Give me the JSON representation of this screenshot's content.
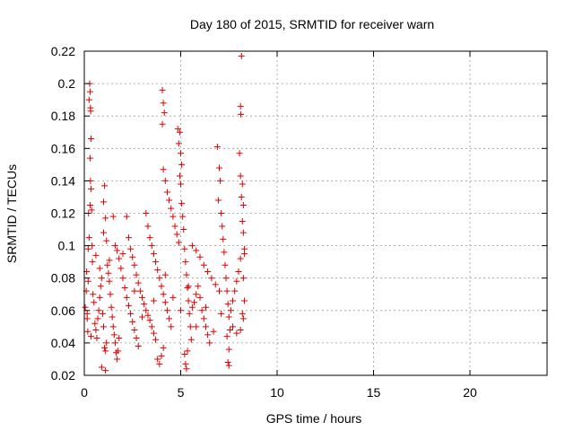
{
  "chart_data": {
    "type": "scatter",
    "title": "Day 180 of 2015, SRMTID for receiver warn",
    "xlabel": "GPS time / hours",
    "ylabel": "SRMTID / TECUs",
    "xlim": [
      0,
      24
    ],
    "ylim": [
      0.02,
      0.22
    ],
    "xticks": [
      0,
      5,
      10,
      15,
      20
    ],
    "xtick_labels": [
      "0",
      "5",
      "10",
      "15",
      "20"
    ],
    "yticks": [
      0.02,
      0.04,
      0.06,
      0.08,
      0.1,
      0.12,
      0.14,
      0.16,
      0.18,
      0.2,
      0.22
    ],
    "ytick_labels": [
      "0.02",
      "0.04",
      "0.06",
      "0.08",
      "0.1",
      "0.12",
      "0.14",
      "0.16",
      "0.18",
      "0.2",
      "0.22"
    ],
    "grid": true,
    "marker": "plus",
    "color": "#e00000",
    "series": [
      {
        "name": "SRMTID",
        "points": [
          [
            0.05,
            0.062
          ],
          [
            0.1,
            0.072
          ],
          [
            0.12,
            0.084
          ],
          [
            0.15,
            0.055
          ],
          [
            0.18,
            0.047
          ],
          [
            0.2,
            0.098
          ],
          [
            0.22,
            0.12
          ],
          [
            0.25,
            0.19
          ],
          [
            0.28,
            0.2
          ],
          [
            0.3,
            0.195
          ],
          [
            0.32,
            0.185
          ],
          [
            0.33,
            0.183
          ],
          [
            0.35,
            0.166
          ],
          [
            0.3,
            0.154
          ],
          [
            0.32,
            0.14
          ],
          [
            0.35,
            0.135
          ],
          [
            0.3,
            0.125
          ],
          [
            0.38,
            0.122
          ],
          [
            0.25,
            0.105
          ],
          [
            0.4,
            0.1
          ],
          [
            0.42,
            0.09
          ],
          [
            0.2,
            0.078
          ],
          [
            0.45,
            0.07
          ],
          [
            0.5,
            0.065
          ],
          [
            0.15,
            0.058
          ],
          [
            0.55,
            0.052
          ],
          [
            0.6,
            0.048
          ],
          [
            0.35,
            0.044
          ],
          [
            0.65,
            0.043
          ],
          [
            0.7,
            0.055
          ],
          [
            0.75,
            0.06
          ],
          [
            0.8,
            0.068
          ],
          [
            0.85,
            0.075
          ],
          [
            0.9,
            0.08
          ],
          [
            0.95,
            0.058
          ],
          [
            1.0,
            0.05
          ],
          [
            1.05,
            0.037
          ],
          [
            1.1,
            0.035
          ],
          [
            1.15,
            0.04
          ],
          [
            0.9,
            0.025
          ],
          [
            1.1,
            0.023
          ],
          [
            1.05,
            0.137
          ],
          [
            1.0,
            0.127
          ],
          [
            1.1,
            0.117
          ],
          [
            1.0,
            0.108
          ],
          [
            1.15,
            0.103
          ],
          [
            1.2,
            0.088
          ],
          [
            1.25,
            0.083
          ],
          [
            1.3,
            0.078
          ],
          [
            1.35,
            0.07
          ],
          [
            1.4,
            0.062
          ],
          [
            1.45,
            0.056
          ],
          [
            1.5,
            0.05
          ],
          [
            1.55,
            0.045
          ],
          [
            1.6,
            0.04
          ],
          [
            1.65,
            0.034
          ],
          [
            1.7,
            0.03
          ],
          [
            1.75,
            0.035
          ],
          [
            1.8,
            0.043
          ],
          [
            1.5,
            0.118
          ],
          [
            1.6,
            0.1
          ],
          [
            1.7,
            0.097
          ],
          [
            1.8,
            0.092
          ],
          [
            1.9,
            0.086
          ],
          [
            2.0,
            0.08
          ],
          [
            2.1,
            0.074
          ],
          [
            2.2,
            0.068
          ],
          [
            2.3,
            0.063
          ],
          [
            2.4,
            0.058
          ],
          [
            2.5,
            0.053
          ],
          [
            2.6,
            0.048
          ],
          [
            2.7,
            0.043
          ],
          [
            2.8,
            0.038
          ],
          [
            2.2,
            0.118
          ],
          [
            2.3,
            0.105
          ],
          [
            2.4,
            0.098
          ],
          [
            2.5,
            0.093
          ],
          [
            2.6,
            0.088
          ],
          [
            2.7,
            0.082
          ],
          [
            2.8,
            0.077
          ],
          [
            2.9,
            0.072
          ],
          [
            3.0,
            0.068
          ],
          [
            3.1,
            0.064
          ],
          [
            3.2,
            0.06
          ],
          [
            3.3,
            0.057
          ],
          [
            3.4,
            0.054
          ],
          [
            3.5,
            0.05
          ],
          [
            3.6,
            0.046
          ],
          [
            3.7,
            0.042
          ],
          [
            3.2,
            0.12
          ],
          [
            3.3,
            0.112
          ],
          [
            3.4,
            0.105
          ],
          [
            3.5,
            0.1
          ],
          [
            3.6,
            0.095
          ],
          [
            3.7,
            0.09
          ],
          [
            3.8,
            0.085
          ],
          [
            3.9,
            0.08
          ],
          [
            4.0,
            0.075
          ],
          [
            4.1,
            0.07
          ],
          [
            4.2,
            0.065
          ],
          [
            4.3,
            0.06
          ],
          [
            4.4,
            0.055
          ],
          [
            4.5,
            0.05
          ],
          [
            3.8,
            0.03
          ],
          [
            3.9,
            0.027
          ],
          [
            4.0,
            0.032
          ],
          [
            4.1,
            0.037
          ],
          [
            4.05,
            0.196
          ],
          [
            4.1,
            0.188
          ],
          [
            4.15,
            0.182
          ],
          [
            4.05,
            0.175
          ],
          [
            4.1,
            0.147
          ],
          [
            4.2,
            0.14
          ],
          [
            4.3,
            0.133
          ],
          [
            4.4,
            0.128
          ],
          [
            4.5,
            0.123
          ],
          [
            4.6,
            0.118
          ],
          [
            4.7,
            0.112
          ],
          [
            4.8,
            0.107
          ],
          [
            4.9,
            0.102
          ],
          [
            4.85,
            0.172
          ],
          [
            4.95,
            0.17
          ],
          [
            4.9,
            0.163
          ],
          [
            5.0,
            0.157
          ],
          [
            5.05,
            0.15
          ],
          [
            4.95,
            0.143
          ],
          [
            5.0,
            0.138
          ],
          [
            5.05,
            0.126
          ],
          [
            5.1,
            0.118
          ],
          [
            5.15,
            0.11
          ],
          [
            5.2,
            0.098
          ],
          [
            5.25,
            0.09
          ],
          [
            5.3,
            0.082
          ],
          [
            5.35,
            0.074
          ],
          [
            5.4,
            0.066
          ],
          [
            5.45,
            0.058
          ],
          [
            5.5,
            0.05
          ],
          [
            5.55,
            0.042
          ],
          [
            5.2,
            0.033
          ],
          [
            5.25,
            0.027
          ],
          [
            5.3,
            0.024
          ],
          [
            5.35,
            0.035
          ],
          [
            5.6,
            0.062
          ],
          [
            5.7,
            0.065
          ],
          [
            5.8,
            0.07
          ],
          [
            5.9,
            0.075
          ],
          [
            6.0,
            0.068
          ],
          [
            6.1,
            0.06
          ],
          [
            6.2,
            0.055
          ],
          [
            6.3,
            0.05
          ],
          [
            6.4,
            0.045
          ],
          [
            6.5,
            0.04
          ],
          [
            5.6,
            0.1
          ],
          [
            5.8,
            0.097
          ],
          [
            6.0,
            0.093
          ],
          [
            6.2,
            0.088
          ],
          [
            6.4,
            0.084
          ],
          [
            6.6,
            0.08
          ],
          [
            6.8,
            0.076
          ],
          [
            7.0,
            0.072
          ],
          [
            6.9,
            0.161
          ],
          [
            7.0,
            0.148
          ],
          [
            7.05,
            0.14
          ],
          [
            6.95,
            0.128
          ],
          [
            7.1,
            0.12
          ],
          [
            7.15,
            0.112
          ],
          [
            7.2,
            0.104
          ],
          [
            7.25,
            0.096
          ],
          [
            7.3,
            0.088
          ],
          [
            7.35,
            0.08
          ],
          [
            7.4,
            0.072
          ],
          [
            7.45,
            0.064
          ],
          [
            7.5,
            0.056
          ],
          [
            7.55,
            0.048
          ],
          [
            7.4,
            0.044
          ],
          [
            7.5,
            0.036
          ],
          [
            7.45,
            0.028
          ],
          [
            7.5,
            0.026
          ],
          [
            7.6,
            0.06
          ],
          [
            7.7,
            0.066
          ],
          [
            7.8,
            0.072
          ],
          [
            7.9,
            0.078
          ],
          [
            8.0,
            0.084
          ],
          [
            8.1,
            0.092
          ],
          [
            8.15,
            0.217
          ],
          [
            8.1,
            0.186
          ],
          [
            8.12,
            0.181
          ],
          [
            8.05,
            0.157
          ],
          [
            8.1,
            0.143
          ],
          [
            8.2,
            0.138
          ],
          [
            8.15,
            0.13
          ],
          [
            8.25,
            0.125
          ],
          [
            8.2,
            0.115
          ],
          [
            8.25,
            0.108
          ],
          [
            8.3,
            0.098
          ],
          [
            8.3,
            0.095
          ],
          [
            8.25,
            0.08
          ],
          [
            8.3,
            0.066
          ],
          [
            8.2,
            0.058
          ],
          [
            8.25,
            0.055
          ],
          [
            8.1,
            0.048
          ],
          [
            7.9,
            0.046
          ],
          [
            0.6,
            0.094
          ],
          [
            0.8,
            0.086
          ],
          [
            1.3,
            0.091
          ],
          [
            2.0,
            0.095
          ],
          [
            2.6,
            0.072
          ],
          [
            3.0,
            0.056
          ],
          [
            3.6,
            0.066
          ],
          [
            4.2,
            0.082
          ],
          [
            4.6,
            0.068
          ],
          [
            5.0,
            0.06
          ],
          [
            5.4,
            0.075
          ],
          [
            5.8,
            0.05
          ],
          [
            6.3,
            0.062
          ],
          [
            6.7,
            0.047
          ],
          [
            7.1,
            0.058
          ],
          [
            7.7,
            0.05
          ]
        ]
      }
    ]
  }
}
